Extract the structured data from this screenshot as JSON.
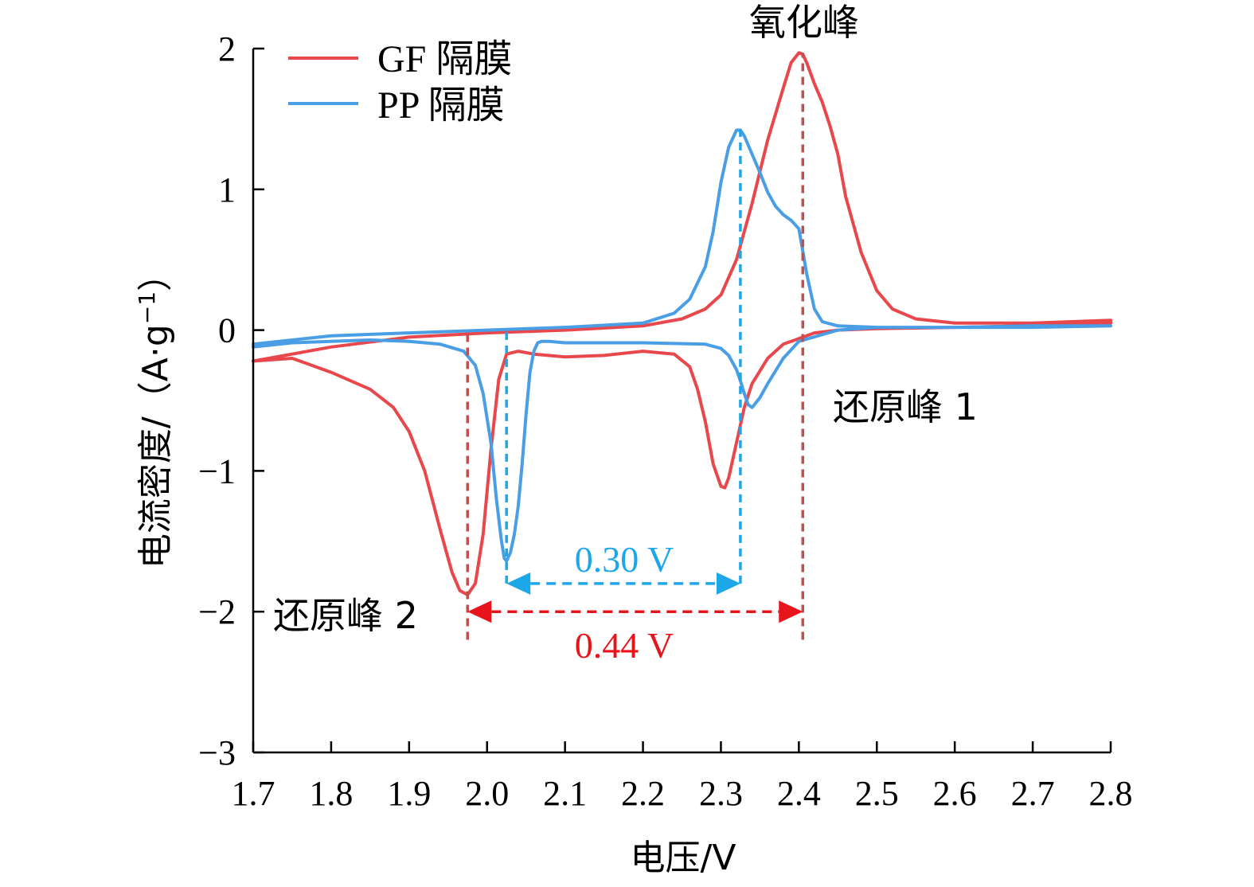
{
  "chart_data": {
    "type": "line",
    "xlabel": "电压/V",
    "ylabel_main": "电流密度/（A·g",
    "ylabel_sup": "−1",
    "ylabel_close": "）",
    "xlim": [
      1.7,
      2.8
    ],
    "ylim": [
      -3,
      2
    ],
    "x_ticks": [
      1.7,
      1.8,
      1.9,
      2.0,
      2.1,
      2.2,
      2.3,
      2.4,
      2.5,
      2.6,
      2.7,
      2.8
    ],
    "x_tick_labels": [
      "1.7",
      "1.8",
      "1.9",
      "2.0",
      "2.1",
      "2.2",
      "2.3",
      "2.4",
      "2.5",
      "2.6",
      "2.7",
      "2.8"
    ],
    "y_ticks": [
      -3,
      -2,
      -1,
      0,
      1,
      2
    ],
    "y_tick_labels": [
      "−3",
      "−2",
      "−1",
      "0",
      "1",
      "2"
    ],
    "grid": false,
    "legend_position": "top-left",
    "series": [
      {
        "name": "GF 隔膜",
        "color": "#e8474c",
        "x": [
          1.7,
          1.75,
          1.8,
          1.85,
          1.88,
          1.9,
          1.92,
          1.94,
          1.955,
          1.965,
          1.975,
          1.985,
          1.995,
          2.005,
          2.015,
          2.025,
          2.04,
          2.06,
          2.1,
          2.15,
          2.2,
          2.24,
          2.26,
          2.27,
          2.28,
          2.29,
          2.3,
          2.305,
          2.31,
          2.32,
          2.33,
          2.34,
          2.36,
          2.38,
          2.4,
          2.42,
          2.45,
          2.5,
          2.6,
          2.7,
          2.8,
          2.8,
          2.7,
          2.6,
          2.55,
          2.52,
          2.5,
          2.48,
          2.46,
          2.45,
          2.44,
          2.43,
          2.42,
          2.41,
          2.405,
          2.4,
          2.39,
          2.38,
          2.36,
          2.34,
          2.32,
          2.3,
          2.28,
          2.25,
          2.2,
          2.1,
          2.0,
          1.9,
          1.8,
          1.75,
          1.7
        ],
        "y": [
          -0.22,
          -0.2,
          -0.3,
          -0.42,
          -0.55,
          -0.72,
          -1.0,
          -1.42,
          -1.72,
          -1.85,
          -1.88,
          -1.8,
          -1.45,
          -0.85,
          -0.35,
          -0.17,
          -0.15,
          -0.17,
          -0.19,
          -0.18,
          -0.15,
          -0.17,
          -0.26,
          -0.42,
          -0.65,
          -0.95,
          -1.11,
          -1.12,
          -1.05,
          -0.8,
          -0.55,
          -0.38,
          -0.2,
          -0.1,
          -0.06,
          -0.02,
          0.0,
          0.01,
          0.02,
          0.03,
          0.05,
          0.07,
          0.05,
          0.05,
          0.08,
          0.15,
          0.28,
          0.55,
          0.95,
          1.25,
          1.45,
          1.62,
          1.75,
          1.9,
          1.96,
          1.97,
          1.9,
          1.72,
          1.35,
          0.9,
          0.5,
          0.25,
          0.15,
          0.08,
          0.03,
          0.0,
          -0.02,
          -0.05,
          -0.12,
          -0.17,
          -0.22
        ]
      },
      {
        "name": "PP 隔膜",
        "color": "#4a9ee6",
        "x": [
          1.7,
          1.75,
          1.8,
          1.85,
          1.9,
          1.94,
          1.97,
          1.985,
          1.995,
          2.005,
          2.012,
          2.018,
          2.022,
          2.025,
          2.03,
          2.035,
          2.04,
          2.045,
          2.05,
          2.055,
          2.06,
          2.065,
          2.07,
          2.08,
          2.1,
          2.2,
          2.28,
          2.3,
          2.31,
          2.32,
          2.325,
          2.33,
          2.335,
          2.34,
          2.35,
          2.36,
          2.38,
          2.4,
          2.45,
          2.5,
          2.6,
          2.7,
          2.8,
          2.8,
          2.7,
          2.6,
          2.5,
          2.45,
          2.43,
          2.42,
          2.41,
          2.4,
          2.39,
          2.38,
          2.37,
          2.36,
          2.35,
          2.34,
          2.33,
          2.325,
          2.32,
          2.31,
          2.3,
          2.29,
          2.28,
          2.26,
          2.24,
          2.2,
          2.1,
          2.0,
          1.9,
          1.8,
          1.75,
          1.7
        ],
        "y": [
          -0.12,
          -0.09,
          -0.08,
          -0.07,
          -0.08,
          -0.1,
          -0.15,
          -0.25,
          -0.45,
          -0.8,
          -1.2,
          -1.48,
          -1.62,
          -1.64,
          -1.58,
          -1.45,
          -1.25,
          -0.95,
          -0.6,
          -0.3,
          -0.15,
          -0.09,
          -0.08,
          -0.08,
          -0.09,
          -0.09,
          -0.1,
          -0.13,
          -0.18,
          -0.28,
          -0.36,
          -0.45,
          -0.53,
          -0.55,
          -0.48,
          -0.38,
          -0.2,
          -0.08,
          0.0,
          0.02,
          0.02,
          0.03,
          0.03,
          0.03,
          0.02,
          0.02,
          0.02,
          0.03,
          0.06,
          0.15,
          0.4,
          0.72,
          0.78,
          0.82,
          0.88,
          0.98,
          1.12,
          1.25,
          1.38,
          1.42,
          1.42,
          1.3,
          1.05,
          0.7,
          0.45,
          0.22,
          0.12,
          0.05,
          0.02,
          0.0,
          -0.02,
          -0.04,
          -0.07,
          -0.1
        ]
      }
    ],
    "annotations": {
      "oxidation_peak": "氧化峰",
      "reduction_peak_1": "还原峰 1",
      "reduction_peak_2": "还原峰 2",
      "gap_pp": "0.30 V",
      "gap_gf": "0.44 V"
    },
    "guides": [
      {
        "series": "GF 隔膜",
        "x": 1.975,
        "y_from": -2.2,
        "y_to": 0.0
      },
      {
        "series": "GF 隔膜",
        "x": 2.405,
        "y_from": -2.2,
        "y_to": 1.97
      },
      {
        "series": "PP 隔膜",
        "x": 2.025,
        "y_from": -1.8,
        "y_to": 0.0
      },
      {
        "series": "PP 隔膜",
        "x": 2.325,
        "y_from": -1.8,
        "y_to": 1.45
      }
    ],
    "gap_arrows": [
      {
        "series": "PP 隔膜",
        "x1": 2.025,
        "x2": 2.325,
        "y": -1.8,
        "label": "0.30 V"
      },
      {
        "series": "GF 隔膜",
        "x1": 1.975,
        "x2": 2.405,
        "y": -2.0,
        "label": "0.44 V"
      }
    ],
    "colors": {
      "gf": "#e8474c",
      "gf_guide": "#c0504d",
      "gf_arrow": "#e8141b",
      "pp": "#4a9ee6",
      "pp_guide": "#1ca7e8",
      "pp_label": "#1ca7e8",
      "gf_label": "#e8141b"
    }
  }
}
